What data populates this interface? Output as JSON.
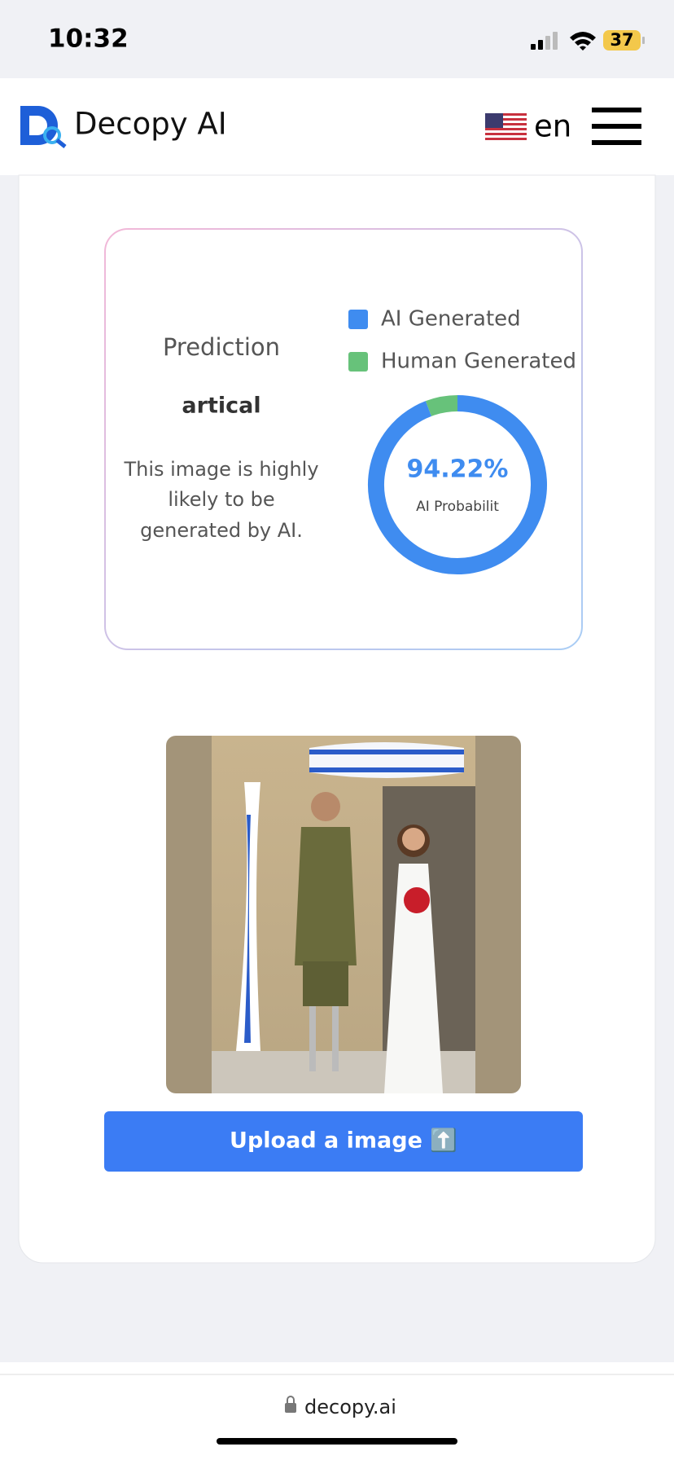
{
  "status_bar": {
    "time": "10:32",
    "battery": "37"
  },
  "header": {
    "brand": "Decopy AI",
    "language": "en"
  },
  "prediction": {
    "heading": "Prediction",
    "result": "artical",
    "description": [
      "This image is highly",
      "likely to be",
      "generated by AI."
    ]
  },
  "chart_data": {
    "type": "pie",
    "donut": true,
    "categories": [
      "AI Generated",
      "Human Generated"
    ],
    "values": [
      94.22,
      5.78
    ],
    "value_labels": [
      "94.22%",
      null
    ],
    "colors": [
      "#3f8cf0",
      "#67c27a"
    ],
    "center_caption": "AI Probabilit"
  },
  "upload_button": "Upload a image ⬆️",
  "address_bar": {
    "url": "decopy.ai"
  }
}
